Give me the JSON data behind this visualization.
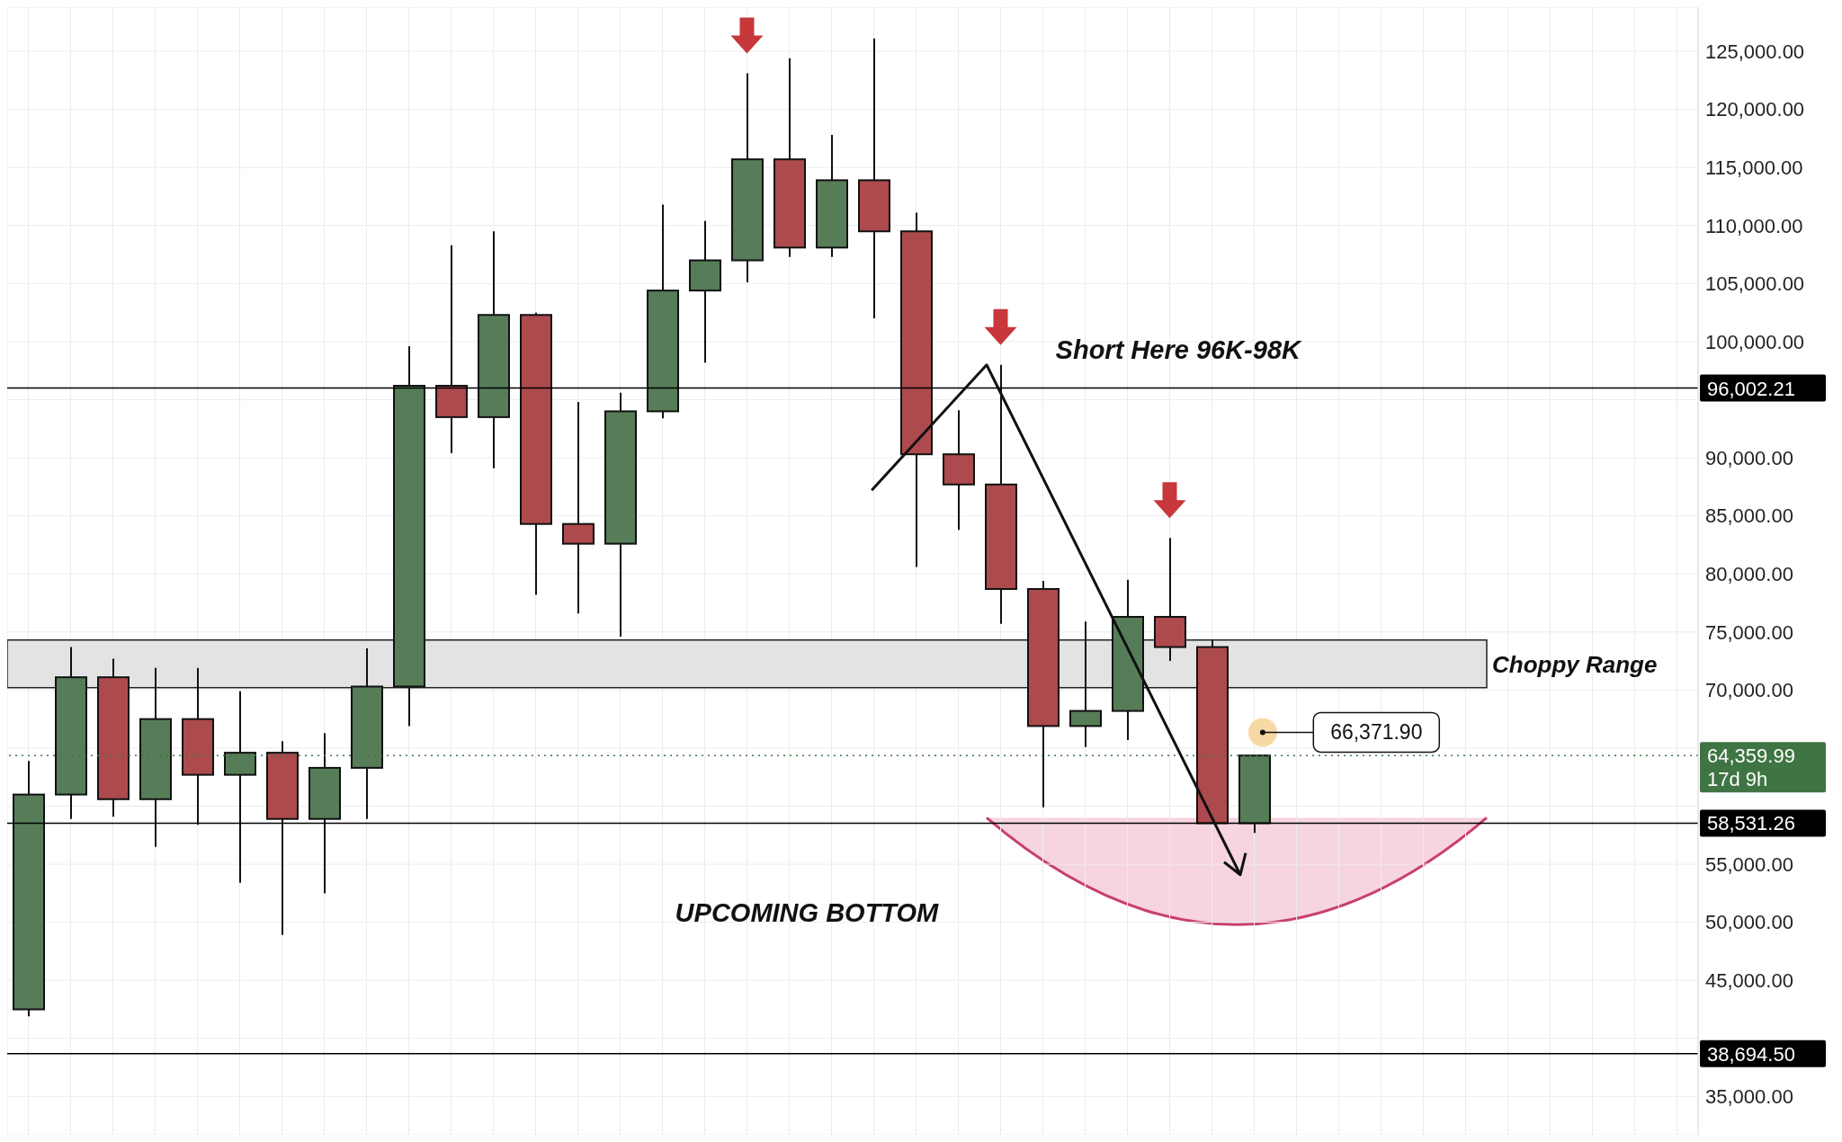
{
  "chart_data": {
    "type": "candlestick",
    "categories": [
      null,
      null,
      null,
      null,
      null,
      null,
      null,
      null,
      null,
      null,
      null,
      null,
      null,
      null,
      null,
      null,
      null,
      null,
      null,
      null,
      null,
      null,
      null,
      null,
      null,
      null,
      null,
      null,
      null,
      null,
      null,
      null,
      null,
      null,
      null,
      null,
      null,
      null,
      null,
      null
    ],
    "ohlc": [
      [
        42500,
        63900,
        41900,
        61000
      ],
      [
        61000,
        73700,
        58900,
        71100
      ],
      [
        71100,
        72700,
        59100,
        60600
      ],
      [
        60600,
        71900,
        56500,
        67500
      ],
      [
        67500,
        71900,
        58400,
        62700
      ],
      [
        62700,
        69900,
        53400,
        64600
      ],
      [
        64600,
        65600,
        48900,
        58900
      ],
      [
        58900,
        66300,
        52500,
        63300
      ],
      [
        63300,
        73600,
        58900,
        70300
      ],
      [
        70300,
        99600,
        66900,
        96200
      ],
      [
        96200,
        108300,
        90400,
        93500
      ],
      [
        93500,
        109500,
        89100,
        102300
      ],
      [
        102300,
        102500,
        78200,
        84300
      ],
      [
        84300,
        94800,
        76600,
        82600
      ],
      [
        82600,
        95600,
        74600,
        94000
      ],
      [
        94000,
        111800,
        93400,
        104400
      ],
      [
        104400,
        110400,
        98200,
        107000
      ],
      [
        107000,
        123100,
        105100,
        115700
      ],
      [
        115700,
        124400,
        107300,
        108100
      ],
      [
        108100,
        117800,
        107300,
        113900
      ],
      [
        113900,
        126100,
        102000,
        109500
      ],
      [
        109500,
        111100,
        80600,
        90300
      ],
      [
        90300,
        94100,
        83800,
        87700
      ],
      [
        87700,
        98000,
        75700,
        78700
      ],
      [
        78700,
        79400,
        59900,
        66900
      ],
      [
        66900,
        75900,
        65100,
        68200
      ],
      [
        68200,
        79500,
        65700,
        76300
      ],
      [
        76300,
        83100,
        72500,
        73700
      ],
      [
        73700,
        74300,
        58500,
        58531.26
      ],
      [
        58531.26,
        64359.99,
        57700,
        64359.99
      ],
      null,
      null,
      null,
      null,
      null,
      null,
      null,
      null,
      null,
      null
    ],
    "colors": [
      "#567d57",
      "#567d57",
      "#ad4a4d",
      "#567d57",
      "#ad4a4d",
      "#567d57",
      "#ad4a4d",
      "#567d57",
      "#567d57",
      "#567d57",
      "#ad4a4d",
      "#567d57",
      "#ad4a4d",
      "#ad4a4d",
      "#567d57",
      "#567d57",
      "#567d57",
      "#567d57",
      "#ad4a4d",
      "#567d57",
      "#ad4a4d",
      "#ad4a4d",
      "#ad4a4d",
      "#ad4a4d",
      "#ad4a4d",
      "#567d57",
      "#567d57",
      "#ad4a4d",
      "#ad4a4d",
      "#567d57",
      null,
      null,
      null,
      null,
      null,
      null,
      null,
      null,
      null,
      null
    ],
    "ylim": [
      31700,
      128800
    ],
    "yticks": [
      {
        "value": 35000,
        "label": "35,000.00"
      },
      {
        "value": 40000,
        "label": null
      },
      {
        "value": 45000,
        "label": "45,000.00"
      },
      {
        "value": 50000,
        "label": "50,000.00"
      },
      {
        "value": 55000,
        "label": "55,000.00"
      },
      {
        "value": 60000,
        "label": null
      },
      {
        "value": 65000,
        "label": null
      },
      {
        "value": 70000,
        "label": "70,000.00"
      },
      {
        "value": 75000,
        "label": "75,000.00"
      },
      {
        "value": 80000,
        "label": "80,000.00"
      },
      {
        "value": 85000,
        "label": "85,000.00"
      },
      {
        "value": 90000,
        "label": "90,000.00"
      },
      {
        "value": 95000,
        "label": null
      },
      {
        "value": 100000,
        "label": "100,000.00"
      },
      {
        "value": 105000,
        "label": "105,000.00"
      },
      {
        "value": 110000,
        "label": "110,000.00"
      },
      {
        "value": 115000,
        "label": "115,000.00"
      },
      {
        "value": 120000,
        "label": "120,000.00"
      },
      {
        "value": 125000,
        "label": "125,000.00"
      }
    ],
    "tick_labels": "y",
    "grid": true,
    "bands": [
      {
        "axis": "y",
        "from": 70200,
        "to": 74300,
        "label": "Choppy Range",
        "color": "#e3e3e3"
      }
    ],
    "ref_lines": [
      {
        "axis": "y",
        "value": 96002.21,
        "label": "96,002.21",
        "color": "#000000",
        "line_style": "solid"
      },
      {
        "axis": "y",
        "value": 58531.26,
        "label": "58,531.26",
        "color": "#000000",
        "line_style": "solid"
      },
      {
        "axis": "y",
        "value": 38694.5,
        "label": "38,694.50",
        "color": "#000000",
        "line_style": "solid"
      },
      {
        "axis": "y",
        "value": 64359.99,
        "label": "64,359.99",
        "color": "#3f7443",
        "line_style": "dotted"
      }
    ],
    "annotations": [
      "Short Here 96K-98K",
      "UPCOMING BOTTOM",
      "66,371.90",
      "17d 9h"
    ]
  }
}
